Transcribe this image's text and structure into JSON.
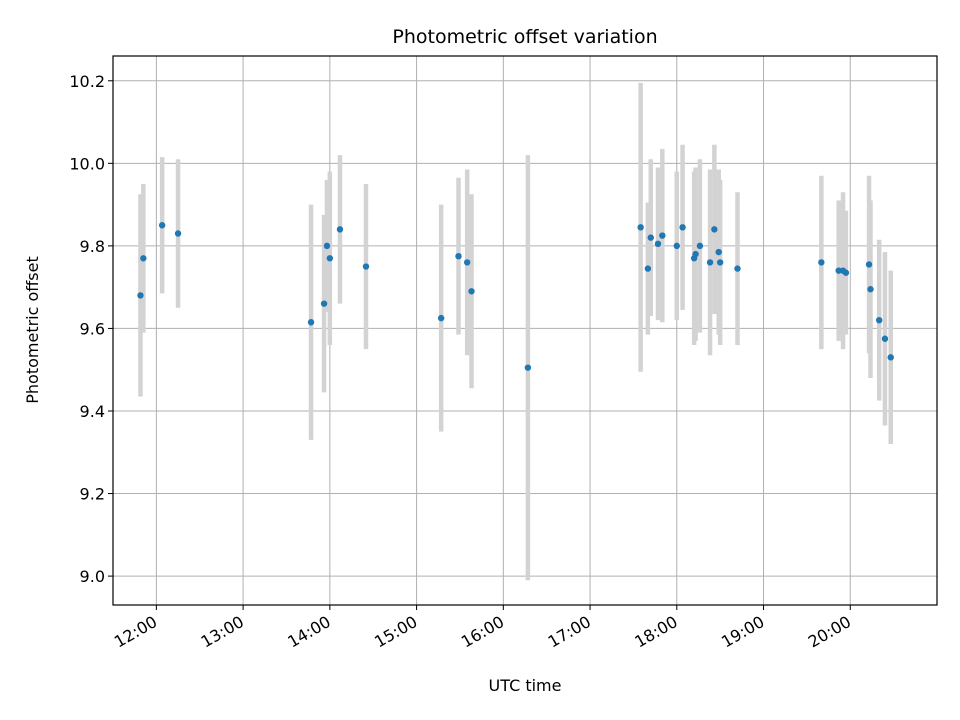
{
  "chart_data": {
    "type": "scatter",
    "title": "Photometric offset variation",
    "xlabel": "UTC time",
    "ylabel": "Photometric offset",
    "grid": true,
    "xlim": [
      "11:30",
      "21:00"
    ],
    "ylim": [
      8.93,
      10.26
    ],
    "x_ticks": [
      "12:00",
      "13:00",
      "14:00",
      "15:00",
      "16:00",
      "17:00",
      "18:00",
      "19:00",
      "20:00"
    ],
    "y_ticks": [
      "9.0",
      "9.2",
      "9.4",
      "9.6",
      "9.8",
      "10.0",
      "10.2"
    ],
    "colors": {
      "point": "#1f77b4",
      "errorbar": "#d3d3d3",
      "grid": "#b0b0b0"
    },
    "series": [
      {
        "points": [
          {
            "x": "11:49",
            "y": 9.68,
            "yerr": 0.245
          },
          {
            "x": "11:51",
            "y": 9.77,
            "yerr": 0.18
          },
          {
            "x": "12:04",
            "y": 9.85,
            "yerr": 0.165
          },
          {
            "x": "12:15",
            "y": 9.83,
            "yerr": 0.18
          },
          {
            "x": "13:47",
            "y": 9.615,
            "yerr": 0.285
          },
          {
            "x": "13:56",
            "y": 9.66,
            "yerr": 0.215
          },
          {
            "x": "13:58",
            "y": 9.8,
            "yerr": 0.16
          },
          {
            "x": "14:00",
            "y": 9.77,
            "yerr": 0.21
          },
          {
            "x": "14:07",
            "y": 9.84,
            "yerr": 0.18
          },
          {
            "x": "14:25",
            "y": 9.75,
            "yerr": 0.2
          },
          {
            "x": "15:17",
            "y": 9.625,
            "yerr": 0.275
          },
          {
            "x": "15:29",
            "y": 9.775,
            "yerr": 0.19
          },
          {
            "x": "15:35",
            "y": 9.76,
            "yerr": 0.225
          },
          {
            "x": "15:38",
            "y": 9.69,
            "yerr": 0.235
          },
          {
            "x": "16:17",
            "y": 9.505,
            "yerr": 0.515
          },
          {
            "x": "17:35",
            "y": 9.845,
            "yerr": 0.35
          },
          {
            "x": "17:40",
            "y": 9.745,
            "yerr": 0.16
          },
          {
            "x": "17:42",
            "y": 9.82,
            "yerr": 0.19
          },
          {
            "x": "17:47",
            "y": 9.805,
            "yerr": 0.185
          },
          {
            "x": "17:50",
            "y": 9.825,
            "yerr": 0.21
          },
          {
            "x": "18:00",
            "y": 9.8,
            "yerr": 0.18
          },
          {
            "x": "18:04",
            "y": 9.845,
            "yerr": 0.2
          },
          {
            "x": "18:12",
            "y": 9.77,
            "yerr": 0.21
          },
          {
            "x": "18:13",
            "y": 9.78,
            "yerr": 0.21
          },
          {
            "x": "18:16",
            "y": 9.8,
            "yerr": 0.21
          },
          {
            "x": "18:23",
            "y": 9.76,
            "yerr": 0.225
          },
          {
            "x": "18:26",
            "y": 9.84,
            "yerr": 0.205
          },
          {
            "x": "18:29",
            "y": 9.785,
            "yerr": 0.2
          },
          {
            "x": "18:30",
            "y": 9.76,
            "yerr": 0.2
          },
          {
            "x": "18:42",
            "y": 9.745,
            "yerr": 0.185
          },
          {
            "x": "19:40",
            "y": 9.76,
            "yerr": 0.21
          },
          {
            "x": "19:52",
            "y": 9.74,
            "yerr": 0.17
          },
          {
            "x": "19:55",
            "y": 9.74,
            "yerr": 0.19
          },
          {
            "x": "19:57",
            "y": 9.735,
            "yerr": 0.15
          },
          {
            "x": "20:13",
            "y": 9.755,
            "yerr": 0.215
          },
          {
            "x": "20:14",
            "y": 9.695,
            "yerr": 0.215
          },
          {
            "x": "20:20",
            "y": 9.62,
            "yerr": 0.195
          },
          {
            "x": "20:24",
            "y": 9.575,
            "yerr": 0.21
          },
          {
            "x": "20:28",
            "y": 9.53,
            "yerr": 0.21
          }
        ]
      }
    ]
  }
}
